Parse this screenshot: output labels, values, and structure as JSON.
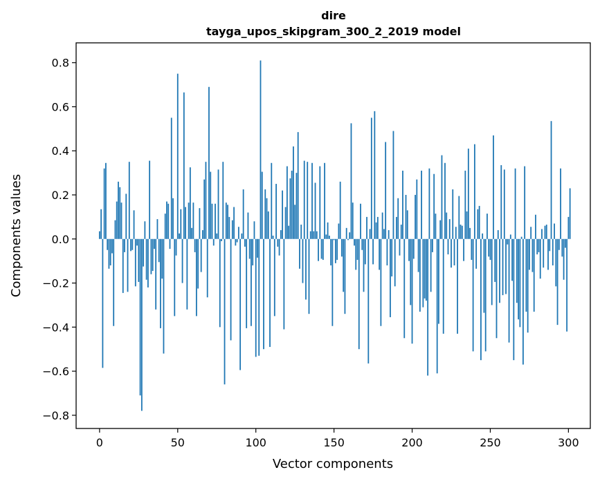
{
  "chart_data": {
    "type": "bar",
    "title_line1": "dire",
    "title_line2": "tayga_upos_skipgram_300_2_2019 model",
    "xlabel": "Vector components",
    "ylabel": "Components values",
    "xlim": [
      -15,
      314
    ],
    "ylim": [
      -0.86,
      0.89
    ],
    "x_ticks": [
      0,
      50,
      100,
      150,
      200,
      250,
      300
    ],
    "x_tick_labels": [
      "0",
      "50",
      "100",
      "150",
      "200",
      "250",
      "300"
    ],
    "y_ticks": [
      -0.8,
      -0.6,
      -0.4,
      -0.2,
      0.0,
      0.2,
      0.4,
      0.6,
      0.8
    ],
    "y_tick_labels": [
      "−0.8",
      "−0.6",
      "−0.4",
      "−0.2",
      "0.0",
      "0.2",
      "0.4",
      "0.6",
      "0.8"
    ],
    "bar_color": "#1f77b4",
    "values": [
      0.035,
      0.135,
      -0.585,
      0.32,
      0.345,
      -0.05,
      -0.135,
      -0.12,
      -0.065,
      -0.395,
      0.085,
      0.17,
      0.26,
      0.235,
      0.165,
      -0.245,
      -0.06,
      0.205,
      -0.24,
      0.35,
      -0.055,
      -0.05,
      0.13,
      -0.215,
      -0.03,
      -0.195,
      -0.71,
      -0.78,
      -0.125,
      0.08,
      -0.185,
      -0.22,
      0.355,
      -0.16,
      -0.145,
      -0.045,
      -0.32,
      0.09,
      -0.105,
      -0.405,
      -0.18,
      -0.52,
      0.115,
      0.17,
      0.16,
      -0.045,
      0.55,
      0.185,
      -0.35,
      -0.075,
      0.75,
      0.025,
      0.135,
      -0.2,
      0.665,
      0.145,
      -0.32,
      0.165,
      0.325,
      0.05,
      0.165,
      -0.06,
      -0.35,
      -0.225,
      0.14,
      -0.15,
      0.04,
      0.27,
      0.35,
      -0.265,
      0.69,
      0.305,
      0.16,
      -0.03,
      0.16,
      0.025,
      0.315,
      -0.4,
      -0.01,
      0.35,
      -0.66,
      0.165,
      0.155,
      0.1,
      -0.46,
      0.085,
      0.145,
      -0.03,
      -0.015,
      0.055,
      -0.595,
      0.025,
      0.225,
      -0.035,
      -0.405,
      0.12,
      -0.09,
      -0.395,
      -0.12,
      0.08,
      -0.535,
      -0.085,
      -0.53,
      0.81,
      0.305,
      -0.5,
      0.225,
      0.185,
      0.125,
      -0.49,
      0.345,
      0.015,
      -0.35,
      0.25,
      -0.035,
      -0.075,
      0.04,
      0.22,
      -0.41,
      0.145,
      0.33,
      0.06,
      0.275,
      0.31,
      0.42,
      0.155,
      0.3,
      0.485,
      -0.135,
      0.065,
      -0.2,
      0.355,
      -0.275,
      0.35,
      -0.34,
      0.035,
      0.345,
      0.035,
      0.255,
      0.035,
      -0.1,
      0.33,
      -0.09,
      -0.095,
      0.345,
      0.02,
      0.075,
      0.015,
      -0.12,
      -0.395,
      -0.005,
      -0.11,
      -0.095,
      0.07,
      0.26,
      -0.08,
      -0.24,
      -0.34,
      0.05,
      -0.005,
      0.03,
      0.525,
      0.165,
      -0.03,
      -0.14,
      -0.095,
      -0.5,
      0.16,
      -0.05,
      -0.24,
      -0.115,
      0.1,
      -0.565,
      0.045,
      0.55,
      -0.115,
      0.58,
      0.075,
      0.1,
      -0.14,
      -0.395,
      0.12,
      0.045,
      0.44,
      -0.12,
      0.04,
      -0.355,
      -0.17,
      0.49,
      -0.215,
      0.1,
      0.185,
      -0.075,
      0.065,
      0.31,
      -0.45,
      0.2,
      0.13,
      -0.1,
      -0.3,
      -0.475,
      -0.09,
      0.2,
      0.27,
      -0.15,
      -0.33,
      0.31,
      -0.31,
      -0.27,
      -0.28,
      -0.62,
      0.32,
      -0.24,
      -0.06,
      0.295,
      0.115,
      -0.61,
      -0.385,
      0.085,
      0.38,
      -0.43,
      0.345,
      0.12,
      -0.07,
      0.09,
      -0.13,
      0.225,
      -0.12,
      0.055,
      -0.43,
      0.195,
      0.065,
      0.06,
      -0.1,
      0.31,
      0.125,
      0.41,
      0.05,
      -0.095,
      -0.51,
      0.43,
      -0.135,
      0.135,
      0.15,
      -0.55,
      0.025,
      -0.335,
      -0.51,
      0.115,
      -0.08,
      -0.095,
      -0.3,
      0.47,
      -0.195,
      -0.45,
      0.04,
      -0.29,
      0.335,
      -0.255,
      0.315,
      -0.25,
      -0.025,
      -0.47,
      0.02,
      -0.19,
      -0.55,
      0.32,
      -0.29,
      -0.365,
      -0.4,
      0.01,
      -0.57,
      0.33,
      -0.33,
      -0.425,
      -0.14,
      0.055,
      -0.15,
      -0.33,
      0.11,
      -0.07,
      -0.06,
      -0.18,
      0.045,
      -0.13,
      0.06,
      0.065,
      -0.14,
      -0.055,
      0.535,
      -0.12,
      0.07,
      -0.215,
      -0.39,
      -0.05,
      0.32,
      -0.08,
      -0.185,
      -0.04,
      -0.42,
      0.1,
      0.23
    ]
  }
}
